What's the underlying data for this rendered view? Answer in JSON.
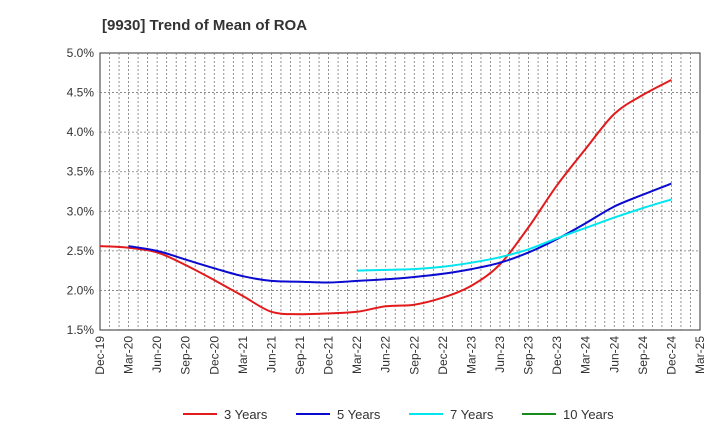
{
  "chart_data": {
    "type": "line",
    "title": "[9930]  Trend of Mean of ROA",
    "xlabel": "",
    "ylabel": "",
    "x": [
      "Dec-19",
      "Mar-20",
      "Jun-20",
      "Sep-20",
      "Dec-20",
      "Mar-21",
      "Jun-21",
      "Sep-21",
      "Dec-21",
      "Mar-22",
      "Jun-22",
      "Sep-22",
      "Dec-22",
      "Mar-23",
      "Jun-23",
      "Sep-23",
      "Dec-23",
      "Mar-24",
      "Jun-24",
      "Sep-24",
      "Dec-24",
      "Mar-25"
    ],
    "y_ticks": [
      "1.5%",
      "2.0%",
      "2.5%",
      "3.0%",
      "3.5%",
      "4.0%",
      "4.5%",
      "5.0%"
    ],
    "ylim": [
      1.5,
      5.0
    ],
    "y_unit": "%",
    "grid": true,
    "legend_position": "bottom",
    "series": [
      {
        "name": "3 Years",
        "color": "#e31a1c",
        "values": [
          2.56,
          2.54,
          2.48,
          2.32,
          2.13,
          1.93,
          1.73,
          1.7,
          1.71,
          1.73,
          1.8,
          1.82,
          1.91,
          2.06,
          2.33,
          2.8,
          3.33,
          3.79,
          4.23,
          4.47,
          4.66,
          null
        ]
      },
      {
        "name": "5 Years",
        "color": "#0a0ad0",
        "values": [
          null,
          2.56,
          2.5,
          2.39,
          2.28,
          2.18,
          2.12,
          2.11,
          2.1,
          2.12,
          2.14,
          2.17,
          2.21,
          2.27,
          2.35,
          2.48,
          2.65,
          2.85,
          3.06,
          3.21,
          3.35,
          null
        ]
      },
      {
        "name": "7 Years",
        "color": "#00e5ee",
        "values": [
          null,
          null,
          null,
          null,
          null,
          null,
          null,
          null,
          null,
          2.25,
          2.26,
          2.27,
          2.3,
          2.35,
          2.42,
          2.52,
          2.66,
          2.79,
          2.92,
          3.04,
          3.15,
          null
        ]
      },
      {
        "name": "10 Years",
        "color": "#1a8a1a",
        "values": [
          null,
          null,
          null,
          null,
          null,
          null,
          null,
          null,
          null,
          null,
          null,
          null,
          null,
          null,
          null,
          null,
          null,
          null,
          null,
          null,
          null,
          null
        ]
      }
    ]
  }
}
